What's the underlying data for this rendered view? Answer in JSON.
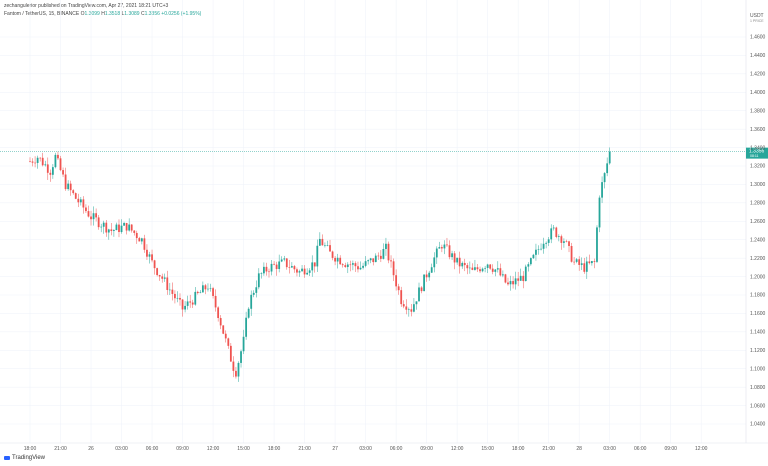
{
  "header": {
    "published": "zechangulerior published on TradingView.com, Apr 27, 2021 18:21 UTC+3"
  },
  "legend": {
    "symbol": "Fantom / TetherUS, 15, BINANCE",
    "o_label": "O",
    "o_value": "1.3099",
    "h_label": "H",
    "h_value": "1.3518",
    "l_label": "L",
    "l_value": "1.3089",
    "c_label": "C",
    "c_value": "1.3356",
    "change": "+0.0256 (+1.95%)"
  },
  "currency": "USDT",
  "currency_sub": "1 PRICE",
  "last_price": "1.3356",
  "last_price_sub": "08:11",
  "logo_text": "TradingView",
  "colors": {
    "up": "#26a69a",
    "down": "#ef5350",
    "grid": "#f0f3fa",
    "text": "#555555",
    "price_badge": "#26a69a"
  },
  "chart_data": {
    "type": "candlestick",
    "y_ticks": [
      "1.4600",
      "1.4400",
      "1.4200",
      "1.4000",
      "1.3800",
      "1.3600",
      "1.3400",
      "1.3200",
      "1.3000",
      "1.2800",
      "1.2600",
      "1.2400",
      "1.2200",
      "1.2000",
      "1.1800",
      "1.1600",
      "1.1400",
      "1.1200",
      "1.1000",
      "1.0800",
      "1.0600",
      "1.0400"
    ],
    "ylim": [
      1.04,
      1.46
    ],
    "x_ticks": [
      "18:00",
      "21:00",
      "26",
      "03:00",
      "06:00",
      "09:00",
      "12:00",
      "15:00",
      "18:00",
      "21:00",
      "27",
      "03:00",
      "06:00",
      "09:00",
      "12:00",
      "15:00",
      "18:00",
      "21:00",
      "28",
      "03:00",
      "06:00",
      "09:00",
      "12:00"
    ],
    "x_hours": [
      0,
      3,
      6,
      9,
      12,
      15,
      18,
      21,
      24,
      27,
      30,
      33,
      36,
      39,
      42,
      45,
      48,
      51,
      54,
      57,
      60,
      63,
      66
    ],
    "anchors": [
      [
        0,
        1.325
      ],
      [
        0.75,
        1.33
      ],
      [
        2,
        1.315
      ],
      [
        2.5,
        1.33
      ],
      [
        3.5,
        1.3
      ],
      [
        4.5,
        1.285
      ],
      [
        6,
        1.265
      ],
      [
        8,
        1.25
      ],
      [
        9.5,
        1.255
      ],
      [
        11,
        1.24
      ],
      [
        12,
        1.215
      ],
      [
        13.5,
        1.19
      ],
      [
        15,
        1.165
      ],
      [
        16,
        1.175
      ],
      [
        17.5,
        1.19
      ],
      [
        18.5,
        1.16
      ],
      [
        19.5,
        1.12
      ],
      [
        20.2,
        1.095
      ],
      [
        21,
        1.13
      ],
      [
        21.5,
        1.17
      ],
      [
        22.5,
        1.2
      ],
      [
        23.5,
        1.21
      ],
      [
        25,
        1.215
      ],
      [
        26.5,
        1.205
      ],
      [
        28,
        1.215
      ],
      [
        28.5,
        1.24
      ],
      [
        29.5,
        1.225
      ],
      [
        31,
        1.215
      ],
      [
        32.5,
        1.21
      ],
      [
        34,
        1.22
      ],
      [
        35,
        1.23
      ],
      [
        36.5,
        1.175
      ],
      [
        37.5,
        1.165
      ],
      [
        38.5,
        1.19
      ],
      [
        39.5,
        1.215
      ],
      [
        40.5,
        1.235
      ],
      [
        42,
        1.215
      ],
      [
        43.5,
        1.205
      ],
      [
        45,
        1.215
      ],
      [
        46,
        1.205
      ],
      [
        47,
        1.19
      ],
      [
        48.5,
        1.2
      ],
      [
        49.5,
        1.22
      ],
      [
        50.5,
        1.24
      ],
      [
        51.5,
        1.25
      ],
      [
        52.5,
        1.24
      ],
      [
        53.5,
        1.215
      ],
      [
        54.5,
        1.21
      ],
      [
        55.5,
        1.215
      ],
      [
        56,
        1.29
      ],
      [
        56.5,
        1.31
      ],
      [
        57,
        1.3356
      ]
    ],
    "last": 1.3356
  }
}
